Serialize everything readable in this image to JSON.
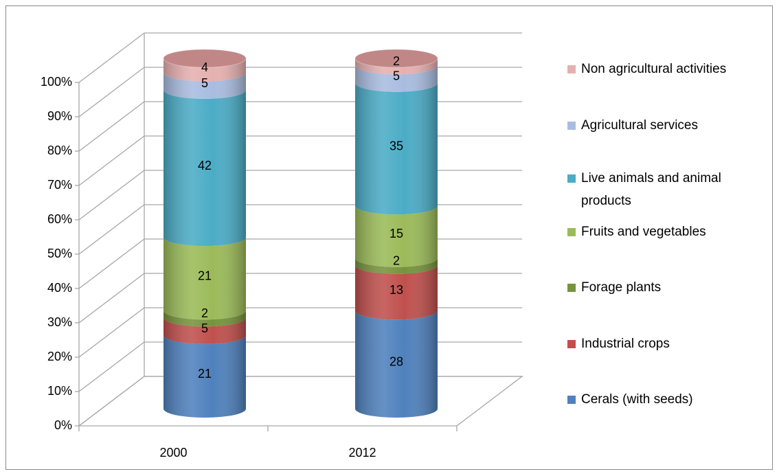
{
  "chart_data": {
    "type": "stacked-cylinder",
    "categories": [
      "2000",
      "2012"
    ],
    "ylim": [
      0,
      100
    ],
    "yticks": [
      {
        "value": 0,
        "label": "0%"
      },
      {
        "value": 10,
        "label": "10%"
      },
      {
        "value": 20,
        "label": "20%"
      },
      {
        "value": 30,
        "label": "30%"
      },
      {
        "value": 40,
        "label": "40%"
      },
      {
        "value": 50,
        "label": "50%"
      },
      {
        "value": 60,
        "label": "60%"
      },
      {
        "value": 70,
        "label": "70%"
      },
      {
        "value": 80,
        "label": "80%"
      },
      {
        "value": 90,
        "label": "90%"
      },
      {
        "value": 100,
        "label": "100%"
      }
    ],
    "grid": true,
    "legend": "right",
    "series": [
      {
        "name": "Cerals (with seeds)",
        "color": "#4f81bd",
        "values": [
          21,
          28
        ]
      },
      {
        "name": "Industrial crops",
        "color": "#c0504d",
        "values": [
          5,
          13
        ]
      },
      {
        "name": "Forage plants",
        "color": "#77933c",
        "values": [
          2,
          2
        ]
      },
      {
        "name": "Fruits and vegetables",
        "color": "#9bbb59",
        "values": [
          21,
          15
        ]
      },
      {
        "name": "Live animals and animal products",
        "color": "#4bacc6",
        "values": [
          42,
          35
        ]
      },
      {
        "name": "Agricultural services",
        "color": "#a9bce0",
        "values": [
          5,
          5
        ]
      },
      {
        "name": "Non agricultural activities",
        "color": "#e6b0b0",
        "values": [
          4,
          2
        ]
      }
    ]
  }
}
